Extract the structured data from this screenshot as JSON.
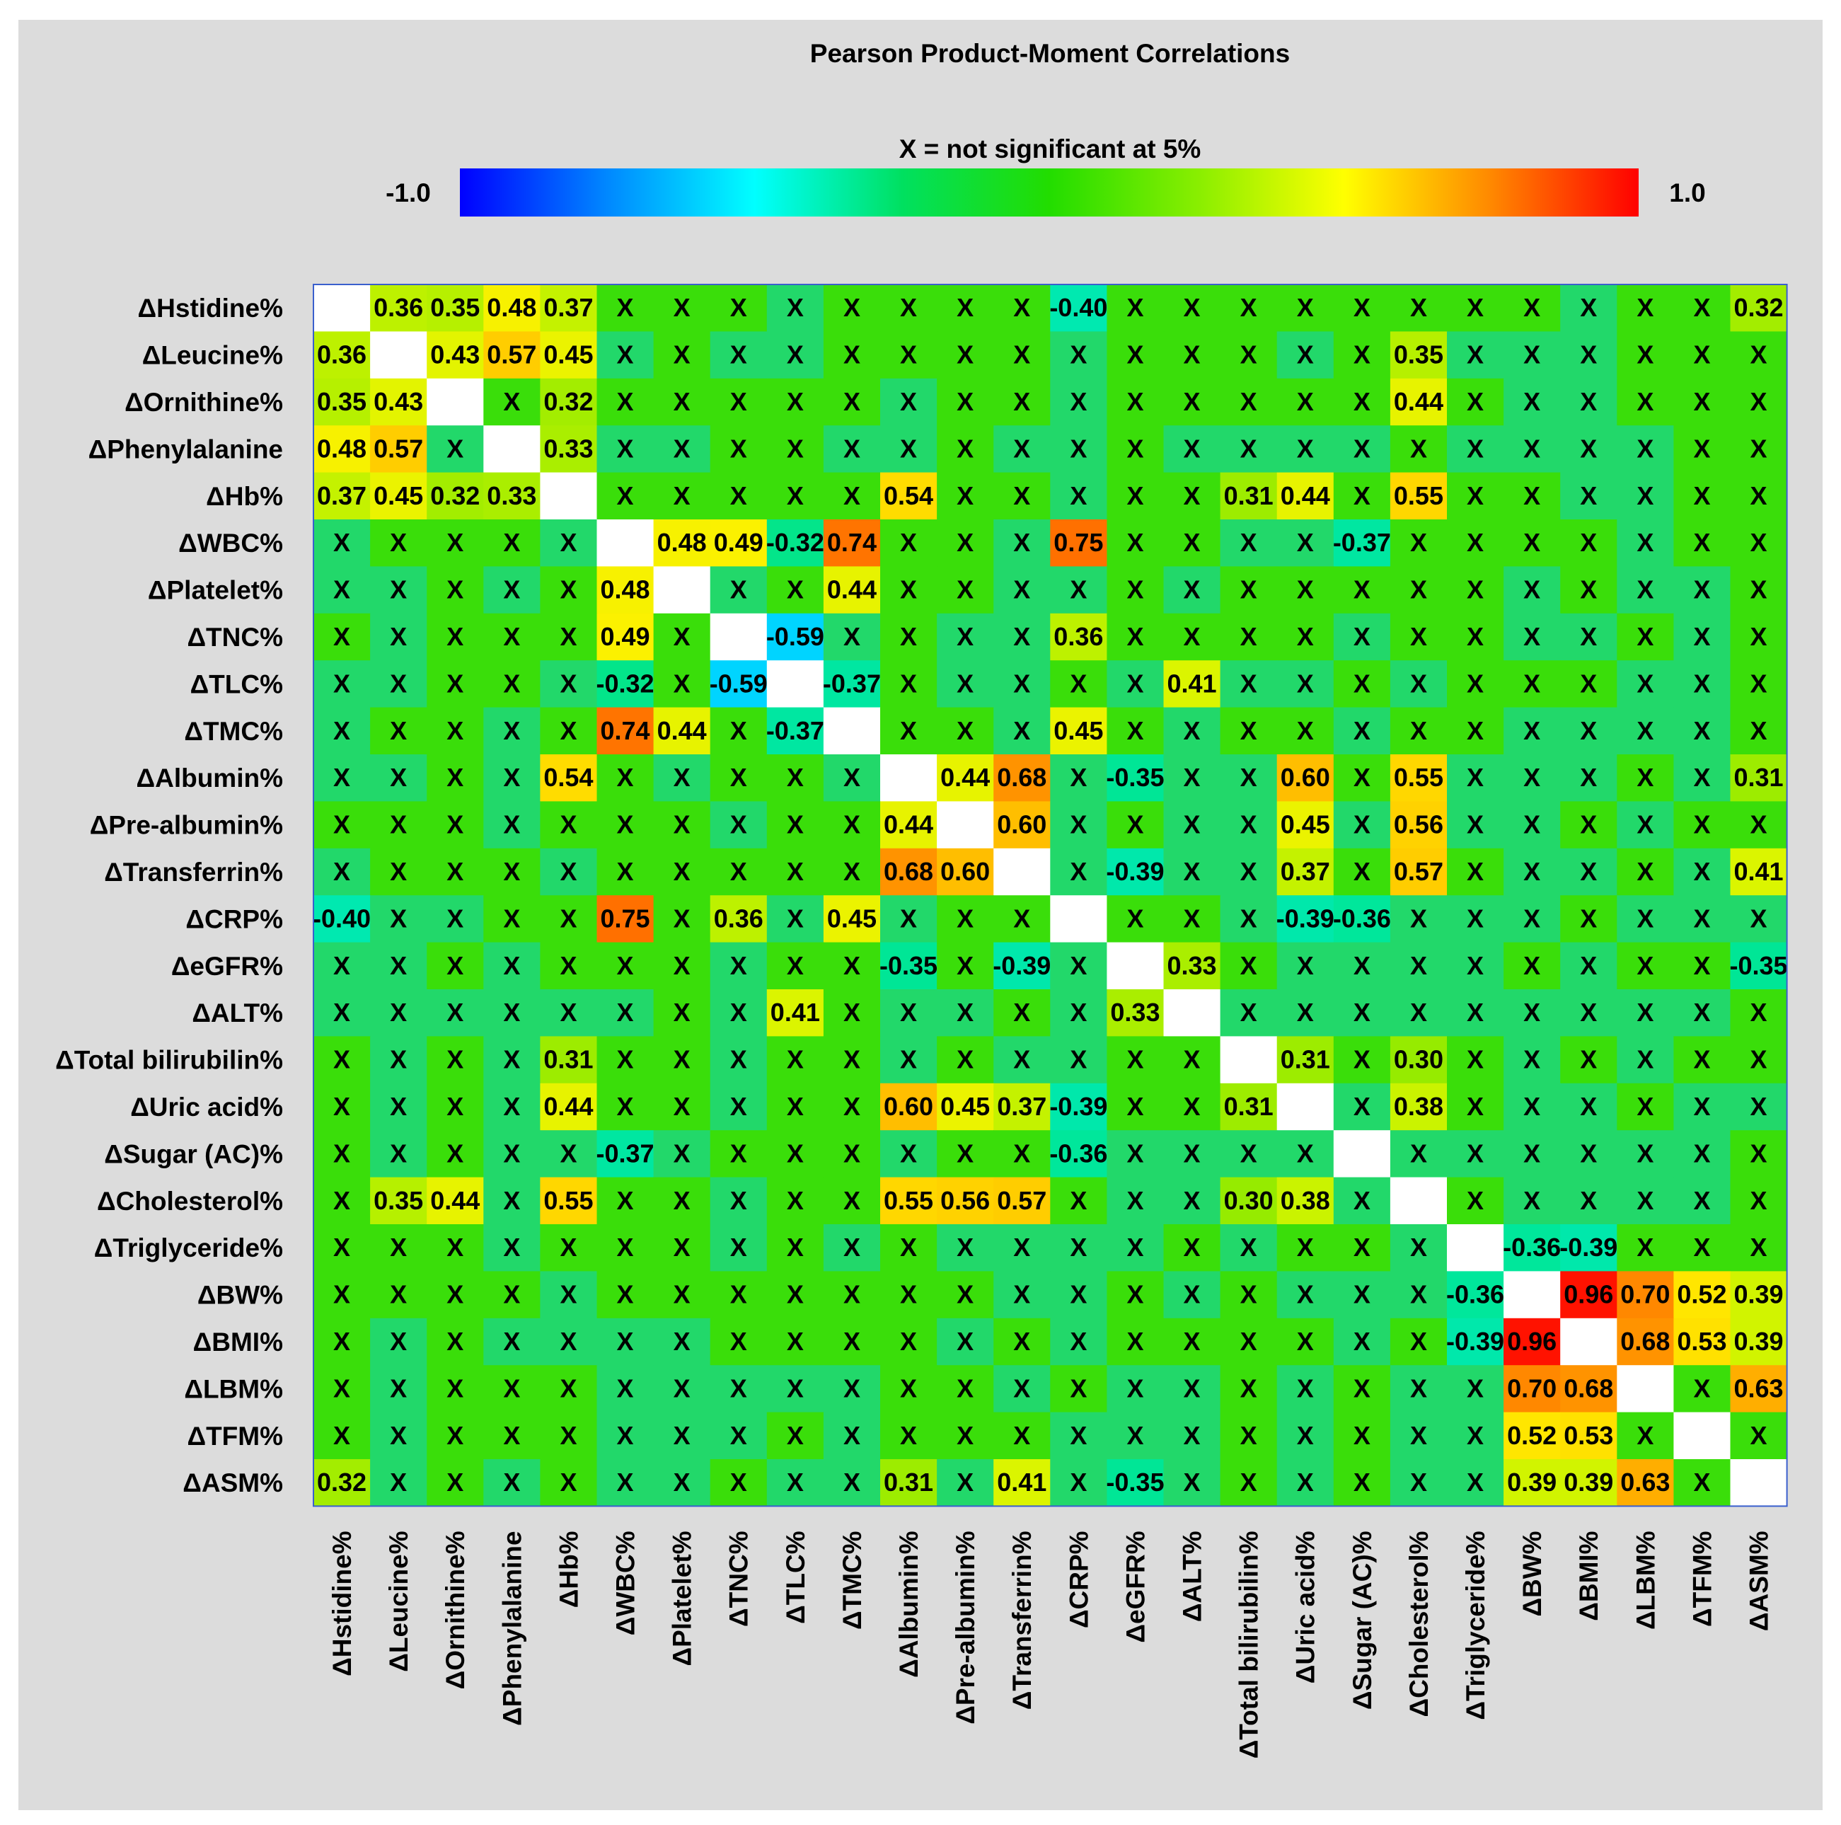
{
  "chart_data": {
    "type": "heatmap",
    "title": "Pearson Product-Moment Correlations",
    "legend_note": "X = not significant at 5%",
    "color_scale": {
      "min_label": "-1.0",
      "max_label": "1.0",
      "min": -1.0,
      "max": 1.0,
      "stops": [
        "#0000ff",
        "#0088ff",
        "#00ffff",
        "#00e060",
        "#22dd00",
        "#88ee00",
        "#ffff00",
        "#ff8800",
        "#ff0000"
      ]
    },
    "row_labels": [
      "ΔHstidine%",
      "ΔLeucine%",
      "ΔOrnithine%",
      "ΔPhenylalanine",
      "ΔHb%",
      "ΔWBC%",
      "ΔPlatelet%",
      "ΔTNC%",
      "ΔTLC%",
      "ΔTMC%",
      "ΔAlbumin%",
      "ΔPre-albumin%",
      "ΔTransferrin%",
      "ΔCRP%",
      "ΔeGFR%",
      "ΔALT%",
      "ΔTotal bilirubilin%",
      "ΔUric acid%",
      "ΔSugar (AC)%",
      "ΔCholesterol%",
      "ΔTriglyceride%",
      "ΔBW%",
      "ΔBMI%",
      "ΔLBM%",
      "ΔTFM%",
      "ΔASM%"
    ],
    "column_labels": [
      "ΔHstidine%",
      "ΔLeucine%",
      "ΔOrnithine%",
      "ΔPhenylalanine",
      "ΔHb%",
      "ΔWBC%",
      "ΔPlatelet%",
      "ΔTNC%",
      "ΔTLC%",
      "ΔTMC%",
      "ΔAlbumin%",
      "ΔPre-albumin%",
      "ΔTransferrin%",
      "ΔCRP%",
      "ΔeGFR%",
      "ΔALT%",
      "ΔTotal bilirubilin%",
      "ΔUric acid%",
      "ΔSugar (AC)%",
      "ΔCholesterol%",
      "ΔTriglyceride%",
      "ΔBW%",
      "ΔBMI%",
      "ΔLBM%",
      "ΔTFM%",
      "ΔASM%"
    ],
    "significant": [
      {
        "r": 0,
        "c": 1,
        "v": 0.36
      },
      {
        "r": 0,
        "c": 2,
        "v": 0.35
      },
      {
        "r": 0,
        "c": 3,
        "v": 0.48
      },
      {
        "r": 0,
        "c": 4,
        "v": 0.37
      },
      {
        "r": 0,
        "c": 13,
        "v": -0.4
      },
      {
        "r": 0,
        "c": 25,
        "v": 0.32
      },
      {
        "r": 1,
        "c": 2,
        "v": 0.43
      },
      {
        "r": 1,
        "c": 3,
        "v": 0.57
      },
      {
        "r": 1,
        "c": 4,
        "v": 0.45
      },
      {
        "r": 1,
        "c": 19,
        "v": 0.35
      },
      {
        "r": 2,
        "c": 4,
        "v": 0.32
      },
      {
        "r": 2,
        "c": 19,
        "v": 0.44
      },
      {
        "r": 3,
        "c": 4,
        "v": 0.33
      },
      {
        "r": 4,
        "c": 10,
        "v": 0.54
      },
      {
        "r": 4,
        "c": 16,
        "v": 0.31
      },
      {
        "r": 4,
        "c": 17,
        "v": 0.44
      },
      {
        "r": 4,
        "c": 19,
        "v": 0.55
      },
      {
        "r": 5,
        "c": 6,
        "v": 0.48
      },
      {
        "r": 5,
        "c": 7,
        "v": 0.49
      },
      {
        "r": 5,
        "c": 8,
        "v": -0.32
      },
      {
        "r": 5,
        "c": 9,
        "v": 0.74
      },
      {
        "r": 5,
        "c": 13,
        "v": 0.75
      },
      {
        "r": 5,
        "c": 18,
        "v": -0.37
      },
      {
        "r": 6,
        "c": 9,
        "v": 0.44
      },
      {
        "r": 7,
        "c": 8,
        "v": -0.59
      },
      {
        "r": 7,
        "c": 13,
        "v": 0.36
      },
      {
        "r": 8,
        "c": 9,
        "v": -0.37
      },
      {
        "r": 8,
        "c": 15,
        "v": 0.41
      },
      {
        "r": 9,
        "c": 13,
        "v": 0.45
      },
      {
        "r": 10,
        "c": 11,
        "v": 0.44
      },
      {
        "r": 10,
        "c": 12,
        "v": 0.68
      },
      {
        "r": 10,
        "c": 14,
        "v": -0.35
      },
      {
        "r": 10,
        "c": 17,
        "v": 0.6
      },
      {
        "r": 10,
        "c": 19,
        "v": 0.55
      },
      {
        "r": 10,
        "c": 25,
        "v": 0.31
      },
      {
        "r": 11,
        "c": 12,
        "v": 0.6
      },
      {
        "r": 11,
        "c": 17,
        "v": 0.45
      },
      {
        "r": 11,
        "c": 19,
        "v": 0.56
      },
      {
        "r": 12,
        "c": 14,
        "v": -0.39
      },
      {
        "r": 12,
        "c": 17,
        "v": 0.37
      },
      {
        "r": 12,
        "c": 19,
        "v": 0.57
      },
      {
        "r": 12,
        "c": 25,
        "v": 0.41
      },
      {
        "r": 13,
        "c": 17,
        "v": -0.39
      },
      {
        "r": 13,
        "c": 18,
        "v": -0.36
      },
      {
        "r": 14,
        "c": 15,
        "v": 0.33
      },
      {
        "r": 14,
        "c": 25,
        "v": -0.35
      },
      {
        "r": 16,
        "c": 17,
        "v": 0.31
      },
      {
        "r": 16,
        "c": 19,
        "v": 0.3
      },
      {
        "r": 17,
        "c": 19,
        "v": 0.38
      },
      {
        "r": 20,
        "c": 21,
        "v": -0.36
      },
      {
        "r": 20,
        "c": 22,
        "v": -0.39
      },
      {
        "r": 21,
        "c": 22,
        "v": 0.96
      },
      {
        "r": 21,
        "c": 23,
        "v": 0.7
      },
      {
        "r": 21,
        "c": 24,
        "v": 0.52
      },
      {
        "r": 21,
        "c": 25,
        "v": 0.39
      },
      {
        "r": 22,
        "c": 23,
        "v": 0.68
      },
      {
        "r": 22,
        "c": 24,
        "v": 0.53
      },
      {
        "r": 22,
        "c": 25,
        "v": 0.39
      },
      {
        "r": 23,
        "c": 25,
        "v": 0.63
      }
    ],
    "nonsignificant_marker": "X",
    "diagonal": "blank",
    "nonsignificant_shades": [
      "ggggggggbgggggggggggggbggg",
      "gggggbgbbggggbgggbggbbbggg",
      "ggggbgggggbggbgggggbgbbggg",
      "ggbgbbbggbbgbbgbbbbgbbbbgg",
      "gggbgggggggggbggbbgbggbbgg",
      "bgggbgggggggbbggbbgggggbgg",
      "bbgbgggbggggbbgbgggggbgbbg",
      "gbgggggggbgbbbggggbggbbgbg",
      "bbggbggbgbgbbgbgbbgbgggbbg",
      "bggbgbggbgggbbgbggbggbbbbg",
      "bbgbggbggbggbbgbbbggbbbgbg",
      "gggbgggbgggggbgbbgbgbbgbgg",
      "bgggbgggggbgbbgbbbgggbbgbg",
      "gbbggggbbgbggbggbbgbbbgbbb",
      "bbgbgggbggggbbgggbbbbgbggg",
      "bbbbbbgbggbbgbbgbbbbbbbbbg",
      "gbgbgggbggbgbbgggbgggbgbgg",
      "gbgbgggbggggggggbgbbgbbgbb",
      "gbgbbgbgggbggbbbbbgbbbbbbg",
      "gbbbgggbggbbbgbbggbggbbbbg",
      "gggbgggbgbgbbbbgbggbgbgggg",
      "ggggbgggggggbbgbgbbbgbgggg",
      "gbgbbbbggggbgbggggbgbggggb",
      "gbgggbbbbbggbgbbgbgbbgbggg",
      "gbgggbbbgbgggbbbgbgbbbgggg",
      "bbgbgbbgbbgbbbgbgbgbbbgggg"
    ]
  }
}
